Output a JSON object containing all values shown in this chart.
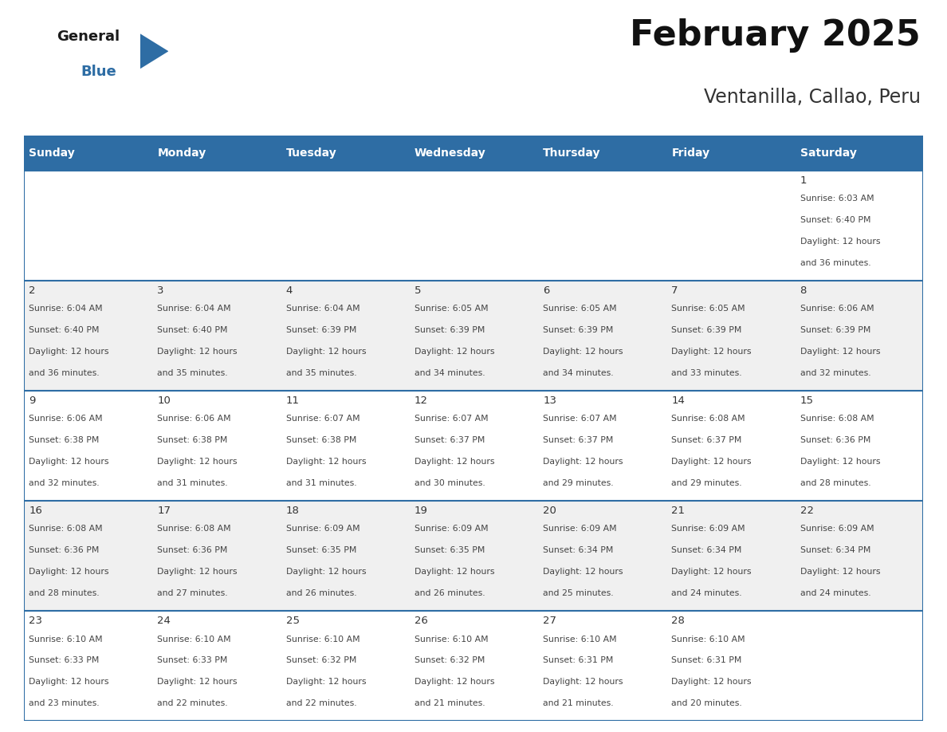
{
  "title": "February 2025",
  "subtitle": "Ventanilla, Callao, Peru",
  "header_bg_color": "#2E6DA4",
  "header_text_color": "#FFFFFF",
  "cell_bg_even": "#FFFFFF",
  "cell_bg_odd": "#F0F0F0",
  "border_color": "#2E6DA4",
  "text_color": "#444444",
  "day_num_color": "#333333",
  "day_headers": [
    "Sunday",
    "Monday",
    "Tuesday",
    "Wednesday",
    "Thursday",
    "Friday",
    "Saturday"
  ],
  "days_data": [
    {
      "day": 1,
      "col": 6,
      "row": 0,
      "sunrise": "6:03 AM",
      "sunset": "6:40 PM",
      "dl_mins": 36
    },
    {
      "day": 2,
      "col": 0,
      "row": 1,
      "sunrise": "6:04 AM",
      "sunset": "6:40 PM",
      "dl_mins": 36
    },
    {
      "day": 3,
      "col": 1,
      "row": 1,
      "sunrise": "6:04 AM",
      "sunset": "6:40 PM",
      "dl_mins": 35
    },
    {
      "day": 4,
      "col": 2,
      "row": 1,
      "sunrise": "6:04 AM",
      "sunset": "6:39 PM",
      "dl_mins": 35
    },
    {
      "day": 5,
      "col": 3,
      "row": 1,
      "sunrise": "6:05 AM",
      "sunset": "6:39 PM",
      "dl_mins": 34
    },
    {
      "day": 6,
      "col": 4,
      "row": 1,
      "sunrise": "6:05 AM",
      "sunset": "6:39 PM",
      "dl_mins": 34
    },
    {
      "day": 7,
      "col": 5,
      "row": 1,
      "sunrise": "6:05 AM",
      "sunset": "6:39 PM",
      "dl_mins": 33
    },
    {
      "day": 8,
      "col": 6,
      "row": 1,
      "sunrise": "6:06 AM",
      "sunset": "6:39 PM",
      "dl_mins": 32
    },
    {
      "day": 9,
      "col": 0,
      "row": 2,
      "sunrise": "6:06 AM",
      "sunset": "6:38 PM",
      "dl_mins": 32
    },
    {
      "day": 10,
      "col": 1,
      "row": 2,
      "sunrise": "6:06 AM",
      "sunset": "6:38 PM",
      "dl_mins": 31
    },
    {
      "day": 11,
      "col": 2,
      "row": 2,
      "sunrise": "6:07 AM",
      "sunset": "6:38 PM",
      "dl_mins": 31
    },
    {
      "day": 12,
      "col": 3,
      "row": 2,
      "sunrise": "6:07 AM",
      "sunset": "6:37 PM",
      "dl_mins": 30
    },
    {
      "day": 13,
      "col": 4,
      "row": 2,
      "sunrise": "6:07 AM",
      "sunset": "6:37 PM",
      "dl_mins": 29
    },
    {
      "day": 14,
      "col": 5,
      "row": 2,
      "sunrise": "6:08 AM",
      "sunset": "6:37 PM",
      "dl_mins": 29
    },
    {
      "day": 15,
      "col": 6,
      "row": 2,
      "sunrise": "6:08 AM",
      "sunset": "6:36 PM",
      "dl_mins": 28
    },
    {
      "day": 16,
      "col": 0,
      "row": 3,
      "sunrise": "6:08 AM",
      "sunset": "6:36 PM",
      "dl_mins": 28
    },
    {
      "day": 17,
      "col": 1,
      "row": 3,
      "sunrise": "6:08 AM",
      "sunset": "6:36 PM",
      "dl_mins": 27
    },
    {
      "day": 18,
      "col": 2,
      "row": 3,
      "sunrise": "6:09 AM",
      "sunset": "6:35 PM",
      "dl_mins": 26
    },
    {
      "day": 19,
      "col": 3,
      "row": 3,
      "sunrise": "6:09 AM",
      "sunset": "6:35 PM",
      "dl_mins": 26
    },
    {
      "day": 20,
      "col": 4,
      "row": 3,
      "sunrise": "6:09 AM",
      "sunset": "6:34 PM",
      "dl_mins": 25
    },
    {
      "day": 21,
      "col": 5,
      "row": 3,
      "sunrise": "6:09 AM",
      "sunset": "6:34 PM",
      "dl_mins": 24
    },
    {
      "day": 22,
      "col": 6,
      "row": 3,
      "sunrise": "6:09 AM",
      "sunset": "6:34 PM",
      "dl_mins": 24
    },
    {
      "day": 23,
      "col": 0,
      "row": 4,
      "sunrise": "6:10 AM",
      "sunset": "6:33 PM",
      "dl_mins": 23
    },
    {
      "day": 24,
      "col": 1,
      "row": 4,
      "sunrise": "6:10 AM",
      "sunset": "6:33 PM",
      "dl_mins": 22
    },
    {
      "day": 25,
      "col": 2,
      "row": 4,
      "sunrise": "6:10 AM",
      "sunset": "6:32 PM",
      "dl_mins": 22
    },
    {
      "day": 26,
      "col": 3,
      "row": 4,
      "sunrise": "6:10 AM",
      "sunset": "6:32 PM",
      "dl_mins": 21
    },
    {
      "day": 27,
      "col": 4,
      "row": 4,
      "sunrise": "6:10 AM",
      "sunset": "6:31 PM",
      "dl_mins": 21
    },
    {
      "day": 28,
      "col": 5,
      "row": 4,
      "sunrise": "6:10 AM",
      "sunset": "6:31 PM",
      "dl_mins": 20
    }
  ],
  "logo_text1": "General",
  "logo_text2": "Blue",
  "logo_color1": "#1a1a1a",
  "logo_color2": "#2E6DA4",
  "logo_triangle_color": "#2E6DA4",
  "title_fontsize": 32,
  "subtitle_fontsize": 17,
  "header_fontsize": 10,
  "day_num_fontsize": 9.5,
  "cell_fontsize": 7.8
}
